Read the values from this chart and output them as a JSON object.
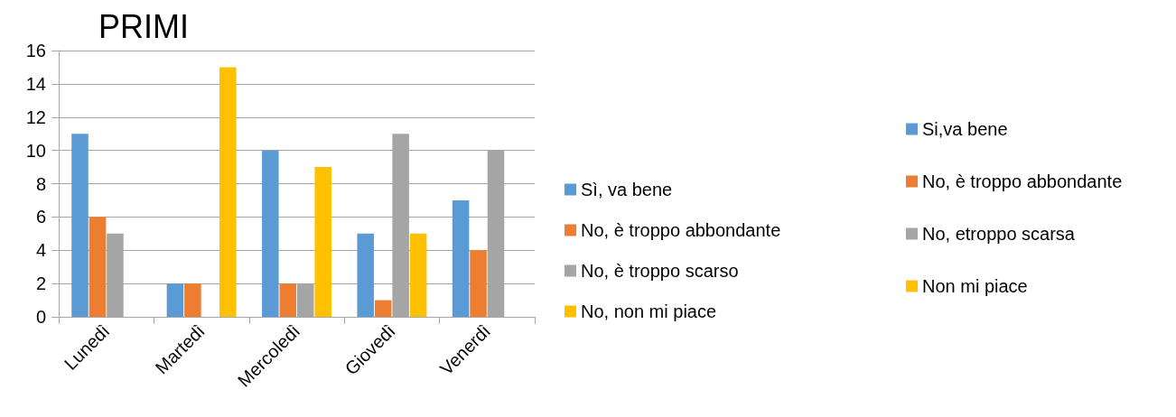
{
  "chart_data": {
    "type": "bar",
    "title": "PRIMI",
    "categories": [
      "Lunedì",
      "Martedì",
      "Mercoledì",
      "Giovedì",
      "Venerdì"
    ],
    "series": [
      {
        "name": "Sì, va bene",
        "color": "#5b9bd5",
        "values": [
          11,
          2,
          10,
          5,
          7
        ]
      },
      {
        "name": "No, è troppo abbondante",
        "color": "#ed7d31",
        "values": [
          6,
          2,
          2,
          1,
          4
        ]
      },
      {
        "name": "No, è troppo scarso",
        "color": "#a5a5a5",
        "values": [
          5,
          null,
          2,
          11,
          10
        ]
      },
      {
        "name": "No, non mi piace",
        "color": "#ffc000",
        "values": [
          null,
          15,
          9,
          5,
          null
        ]
      },
      {
        "name": "Si,va bene",
        "color": "#5b9bd5",
        "values": [
          null,
          null,
          null,
          null,
          null
        ]
      },
      {
        "name": "No, è troppo abbondante",
        "color": "#ed7d31",
        "values": [
          null,
          null,
          null,
          null,
          null
        ]
      },
      {
        "name": "No, etroppo scarsa",
        "color": "#a5a5a5",
        "values": [
          null,
          null,
          null,
          null,
          null
        ]
      },
      {
        "name": "Non mi piace",
        "color": "#ffc000",
        "values": [
          null,
          null,
          null,
          null,
          null
        ]
      }
    ],
    "ylim": [
      0,
      16
    ],
    "yticks": [
      0,
      2,
      4,
      6,
      8,
      10,
      12,
      14,
      16
    ],
    "grid": "y",
    "legend": "right"
  }
}
